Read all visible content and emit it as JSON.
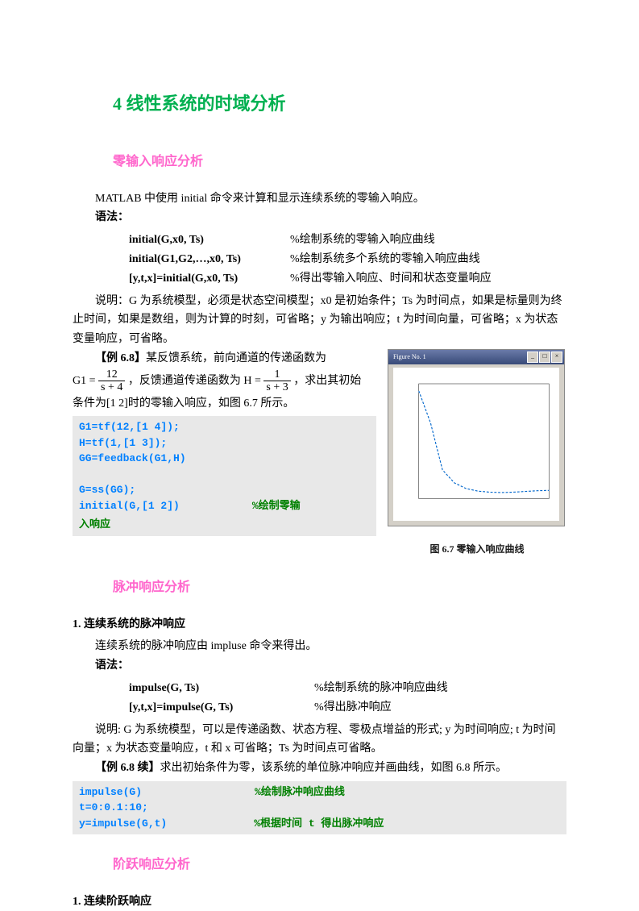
{
  "title": "4 线性系统的时域分析",
  "section1": {
    "title": "零输入响应分析",
    "intro": "MATLAB 中使用 initial 命令来计算和显示连续系统的零输入响应。",
    "syntax_label": "语法：",
    "syntax": [
      {
        "l": "initial(G,x0, Ts)",
        "r": "%绘制系统的零输入响应曲线"
      },
      {
        "l": "initial(G1,G2,…,x0, Ts)",
        "r": "%绘制系统多个系统的零输入响应曲线"
      },
      {
        "l": "[y,t,x]=initial(G,x0, Ts)",
        "r": "%得出零输入响应、时间和状态变量响应"
      }
    ],
    "explain_pre": "说明：G 为系统模型，必须是状态空间模型；x0 是初始条件；Ts 为时间点，如果是标量则为终止时间，如果是数组，则为计算的时刻，可省略；y 为输出响应；t 为时间向量，可省略；x 为状态变量响应，可省略。",
    "ex_label": "【例 6.8】",
    "ex_pre": "某反馈系统，前向通道的传递函数为",
    "ex_g1_eq_left": "G1 =",
    "ex_g1_num": "12",
    "ex_g1_den": "s + 4",
    "ex_mid": "，反馈通道传递函数为 H =",
    "ex_h_num": "1",
    "ex_h_den": "s + 3",
    "ex_post": "，求出其初始",
    "ex_line2": "条件为[1 2]时的零输入响应，如图 6.7 所示。",
    "code1": {
      "l1": "G1=tf(12,[1 4]);",
      "l2": "H=tf(1,[1 3]);",
      "l3": "GG=feedback(G1,H)",
      "l4": "　",
      "l5": "G=ss(GG);",
      "l6": "initial(G,[1 2])",
      "l6c": "%绘制零输",
      "l7": "入响应"
    },
    "fig_caption": "图 6.7  零输入响应曲线",
    "fig_title": "Figure No. 1",
    "chart": {
      "type": "line",
      "x": [
        0,
        0.5,
        1.0,
        1.5,
        2.0,
        2.5,
        3.0,
        3.5,
        4.0,
        4.5,
        5.0,
        5.5
      ],
      "y": [
        15.0,
        10.5,
        4.0,
        2.2,
        1.4,
        1.05,
        0.9,
        0.85,
        0.9,
        1.0,
        1.1,
        1.15
      ],
      "line_color": "#0066cc",
      "line_style": "dashed",
      "bg": "#ffffff",
      "xlim": [
        0,
        5.5
      ],
      "ylim": [
        0,
        16
      ],
      "grid": false
    }
  },
  "section2": {
    "title": "脉冲响应分析",
    "h3": "1.  连续系统的脉冲响应",
    "intro": "连续系统的脉冲响应由 impluse 命令来得出。",
    "syntax_label": "语法：",
    "syntax": [
      {
        "l": "impulse(G, Ts)",
        "r": "%绘制系统的脉冲响应曲线"
      },
      {
        "l": "[y,t,x]=impulse(G, Ts)",
        "r": "%得出脉冲响应"
      }
    ],
    "explain": "说明: G 为系统模型，可以是传递函数、状态方程、零极点增益的形式; y 为时间响应; t 为时间向量；x 为状态变量响应，t 和 x 可省略；Ts 为时间点可省略。",
    "ex_label": "【例 6.8 续】",
    "ex_text": "求出初始条件为零，该系统的单位脉冲响应并画曲线，如图 6.8 所示。",
    "code2": {
      "l1": "impulse(G)",
      "l1c": "%绘制脉冲响应曲线",
      "l2": "t=0:0.1:10;",
      "l3": "y=impulse(G,t)",
      "l3c": "%根据时间 t 得出脉冲响应"
    }
  },
  "section3": {
    "title": "阶跃响应分析",
    "h3": "1.  连续阶跃响应"
  }
}
